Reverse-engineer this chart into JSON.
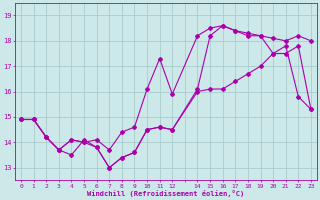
{
  "xlabel": "Windchill (Refroidissement éolien,°C)",
  "bg_color": "#cce8e8",
  "grid_color": "#aacccc",
  "line_color": "#aa00aa",
  "xlim": [
    -0.5,
    23.5
  ],
  "ylim": [
    12.5,
    19.5
  ],
  "yticks": [
    13,
    14,
    15,
    16,
    17,
    18,
    19
  ],
  "line1_x": [
    0,
    1,
    2,
    3,
    4,
    5,
    6,
    7,
    8,
    9,
    10,
    11,
    12,
    14,
    15,
    16,
    17,
    18,
    19,
    20,
    21,
    22,
    23
  ],
  "line1_y": [
    14.9,
    14.9,
    14.2,
    13.7,
    13.5,
    14.1,
    13.8,
    13.0,
    13.4,
    13.6,
    14.5,
    14.6,
    14.5,
    16.0,
    16.1,
    16.1,
    16.4,
    16.7,
    17.0,
    17.5,
    17.5,
    17.8,
    15.3
  ],
  "line2_x": [
    0,
    1,
    2,
    3,
    4,
    5,
    6,
    7,
    8,
    9,
    10,
    11,
    12,
    14,
    15,
    16,
    17,
    18,
    19,
    20,
    21,
    22,
    23
  ],
  "line2_y": [
    14.9,
    14.9,
    14.2,
    13.7,
    14.1,
    14.0,
    14.1,
    13.7,
    14.4,
    14.6,
    16.1,
    17.3,
    15.9,
    18.2,
    18.5,
    18.6,
    18.4,
    18.3,
    18.2,
    18.1,
    18.0,
    18.2,
    18.0
  ],
  "line3_x": [
    0,
    1,
    2,
    3,
    4,
    5,
    6,
    7,
    8,
    9,
    10,
    11,
    12,
    14,
    15,
    16,
    17,
    18,
    19,
    20,
    21,
    22,
    23
  ],
  "line3_y": [
    14.9,
    14.9,
    14.2,
    13.7,
    14.1,
    14.0,
    13.8,
    13.0,
    13.4,
    13.6,
    14.5,
    14.6,
    14.5,
    16.1,
    18.2,
    18.6,
    18.4,
    18.2,
    18.2,
    17.5,
    17.8,
    15.8,
    15.3
  ],
  "marker_size": 2,
  "linewidth": 0.8,
  "font_size_tick": 4.5,
  "font_size_label": 5.0,
  "font_color": "#aa00aa"
}
